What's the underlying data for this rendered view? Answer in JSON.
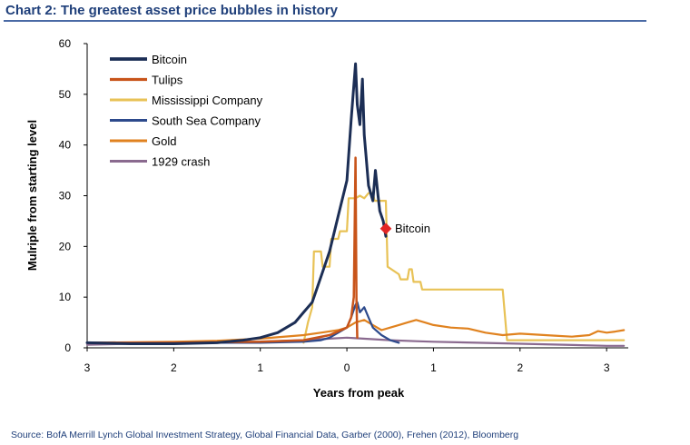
{
  "header": {
    "title": "Chart 2: The greatest asset price bubbles in history"
  },
  "footer": {
    "source": "Source:  BofA Merrill Lynch Global Investment Strategy, Global Financial Data, Garber (2000), Frehen (2012),  Bloomberg"
  },
  "chart_data": {
    "type": "line",
    "title": "Chart 2: The greatest asset price bubbles in history",
    "xlabel": "Years from peak",
    "ylabel": "Mulriple from starting level",
    "xlim": [
      -3.0,
      3.25
    ],
    "ylim": [
      0,
      60
    ],
    "x_ticks": [
      -3,
      -2,
      -1,
      0,
      1,
      2,
      3
    ],
    "x_tick_labels": [
      "3",
      "2",
      "1",
      "0",
      "1",
      "2",
      "3"
    ],
    "y_ticks": [
      0,
      10,
      20,
      30,
      40,
      50,
      60
    ],
    "y_tick_labels": [
      "0",
      "10",
      "20",
      "30",
      "40",
      "50",
      "60"
    ],
    "grid": false,
    "legend_position": "top-left",
    "series": [
      {
        "name": "Bitcoin",
        "color": "#1c2e55",
        "width": 3,
        "x": [
          -3.0,
          -2.5,
          -2.0,
          -1.5,
          -1.2,
          -1.0,
          -0.8,
          -0.6,
          -0.5,
          -0.4,
          -0.3,
          -0.2,
          -0.1,
          0.0,
          0.05,
          0.1,
          0.12,
          0.15,
          0.18,
          0.2,
          0.22,
          0.25,
          0.3,
          0.33,
          0.36,
          0.38,
          0.42,
          0.45
        ],
        "y": [
          1,
          0.8,
          0.8,
          1.0,
          1.5,
          2.0,
          3.0,
          5.0,
          7.0,
          9.0,
          14.0,
          19.0,
          26.0,
          33.0,
          45.0,
          56.0,
          48.0,
          44.0,
          53.0,
          42.0,
          38.0,
          32.0,
          29.0,
          35.0,
          30.0,
          27.0,
          25.0,
          22.0
        ]
      },
      {
        "name": "Tulips",
        "color": "#c8541a",
        "width": 2.5,
        "x": [
          -3.0,
          -2.0,
          -1.0,
          -0.5,
          -0.2,
          0.0,
          0.05,
          0.08,
          0.1,
          0.11,
          0.12
        ],
        "y": [
          1,
          1,
          1.2,
          1.5,
          2.5,
          4.0,
          6.0,
          10.0,
          37.5,
          10.0,
          2.0
        ]
      },
      {
        "name": "Mississippi Company",
        "color": "#e8c256",
        "width": 2.2,
        "x": [
          -0.5,
          -0.45,
          -0.4,
          -0.38,
          -0.3,
          -0.28,
          -0.2,
          -0.18,
          -0.1,
          -0.08,
          0.0,
          0.02,
          0.1,
          0.15,
          0.2,
          0.25,
          0.3,
          0.32,
          0.45,
          0.47,
          0.6,
          0.62,
          0.7,
          0.72,
          0.75,
          0.77,
          0.85,
          0.87,
          1.0,
          1.2,
          1.5,
          1.8,
          1.85,
          2.0,
          2.5,
          3.0,
          3.2
        ],
        "y": [
          1.0,
          5.0,
          8.0,
          19.0,
          19.0,
          16.0,
          16.0,
          21.5,
          21.5,
          23.0,
          23.0,
          29.5,
          29.5,
          30.0,
          29.5,
          30.5,
          30.5,
          29.0,
          29.0,
          16.0,
          14.5,
          13.5,
          13.5,
          15.5,
          15.5,
          13.0,
          13.0,
          11.5,
          11.5,
          11.5,
          11.5,
          11.5,
          1.5,
          1.5,
          1.5,
          1.5,
          1.5
        ]
      },
      {
        "name": "South Sea Company",
        "color": "#2d4a8c",
        "width": 2.2,
        "x": [
          -3.0,
          -2.0,
          -1.0,
          -0.5,
          -0.3,
          -0.2,
          -0.1,
          0.0,
          0.05,
          0.1,
          0.12,
          0.15,
          0.2,
          0.25,
          0.3,
          0.4,
          0.5,
          0.6
        ],
        "y": [
          1,
          1,
          1,
          1.2,
          1.5,
          2.0,
          3.0,
          4.0,
          6.0,
          8.5,
          9.0,
          7.0,
          8.0,
          6.0,
          4.0,
          2.5,
          1.5,
          1.0
        ]
      },
      {
        "name": "Gold",
        "color": "#e0821f",
        "width": 2.2,
        "x": [
          -3.0,
          -2.0,
          -1.5,
          -1.0,
          -0.5,
          -0.3,
          -0.1,
          0.0,
          0.1,
          0.2,
          0.3,
          0.4,
          0.5,
          0.6,
          0.7,
          0.8,
          0.9,
          1.0,
          1.2,
          1.4,
          1.6,
          1.8,
          2.0,
          2.2,
          2.4,
          2.6,
          2.8,
          2.9,
          3.0,
          3.1,
          3.2
        ],
        "y": [
          1.0,
          1.2,
          1.4,
          1.8,
          2.5,
          3.0,
          3.5,
          4.0,
          5.0,
          5.5,
          4.5,
          3.5,
          4.0,
          4.5,
          5.0,
          5.5,
          5.0,
          4.5,
          4.0,
          3.8,
          3.0,
          2.5,
          2.8,
          2.6,
          2.4,
          2.2,
          2.5,
          3.3,
          3.0,
          3.2,
          3.5
        ]
      },
      {
        "name": "1929 crash",
        "color": "#8a6a8f",
        "width": 2.2,
        "x": [
          -3.0,
          -2.5,
          -2.0,
          -1.5,
          -1.0,
          -0.5,
          -0.2,
          0.0,
          0.1,
          0.3,
          0.5,
          0.8,
          1.0,
          1.5,
          2.0,
          2.5,
          3.0,
          3.2
        ],
        "y": [
          0.6,
          0.8,
          0.9,
          1.0,
          1.2,
          1.5,
          1.8,
          2.0,
          1.9,
          1.7,
          1.5,
          1.3,
          1.2,
          1.0,
          0.8,
          0.6,
          0.4,
          0.4
        ]
      }
    ],
    "annotation": {
      "label": "Bitcoin",
      "x": 0.45,
      "y": 23.5,
      "marker_color": "#e32626"
    }
  }
}
